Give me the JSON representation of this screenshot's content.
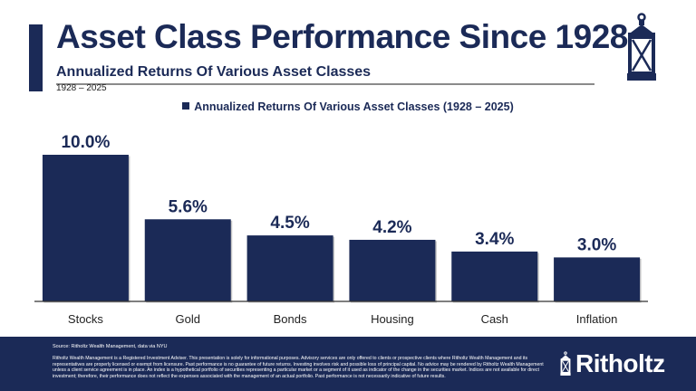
{
  "header": {
    "title": "Asset Class Performance Since 1928",
    "subtitle": "Annualized Returns Of Various Asset Classes",
    "years": "1928 – 2025"
  },
  "colors": {
    "navy": "#1b2a57",
    "rule": "#8a8a8a"
  },
  "icons": {
    "logo": "lantern-icon"
  },
  "chart_data": {
    "type": "bar",
    "legend": {
      "label": "Annualized Returns Of Various Asset Classes (1928 – 2025)",
      "placement": "top"
    },
    "categories": [
      "Stocks",
      "Gold",
      "Bonds",
      "Housing",
      "Cash",
      "Inflation"
    ],
    "series": [
      {
        "name": "Annualized Returns Of Various Asset Classes (1928 – 2025)",
        "values": [
          10.0,
          5.6,
          4.5,
          4.2,
          3.4,
          3.0
        ]
      }
    ],
    "data_labels": [
      "10.0%",
      "5.6%",
      "4.5%",
      "4.2%",
      "3.4%",
      "3.0%"
    ],
    "ylim": [
      0,
      10
    ],
    "grid": false,
    "xlabel": "",
    "ylabel": ""
  },
  "footer": {
    "source": "Source: Ritholtz Wealth Management, data via NYU",
    "disclaimer": "Ritholtz Wealth Management is a Registered Investment Adviser. This presentation is solely for informational purposes. Advisory services are only offered to clients or prospective clients where Ritholtz Wealth Management and its representatives are properly licensed or exempt from licensure. Past performance is no guarantee of future returns. Investing involves risk and possible loss of principal capital. No advice may be rendered by Ritholtz Wealth Management unless a client service agreement is in place. An index is a hypothetical portfolio of securities representing a particular market or a segment of it used as indicator of the change in the securities market. Indices are not available for direct investment; therefore, their performance does not reflect the expenses associated with the management of an actual portfolio. Past performance is not necessarily indicative of future results.",
    "brand": "Ritholtz"
  }
}
